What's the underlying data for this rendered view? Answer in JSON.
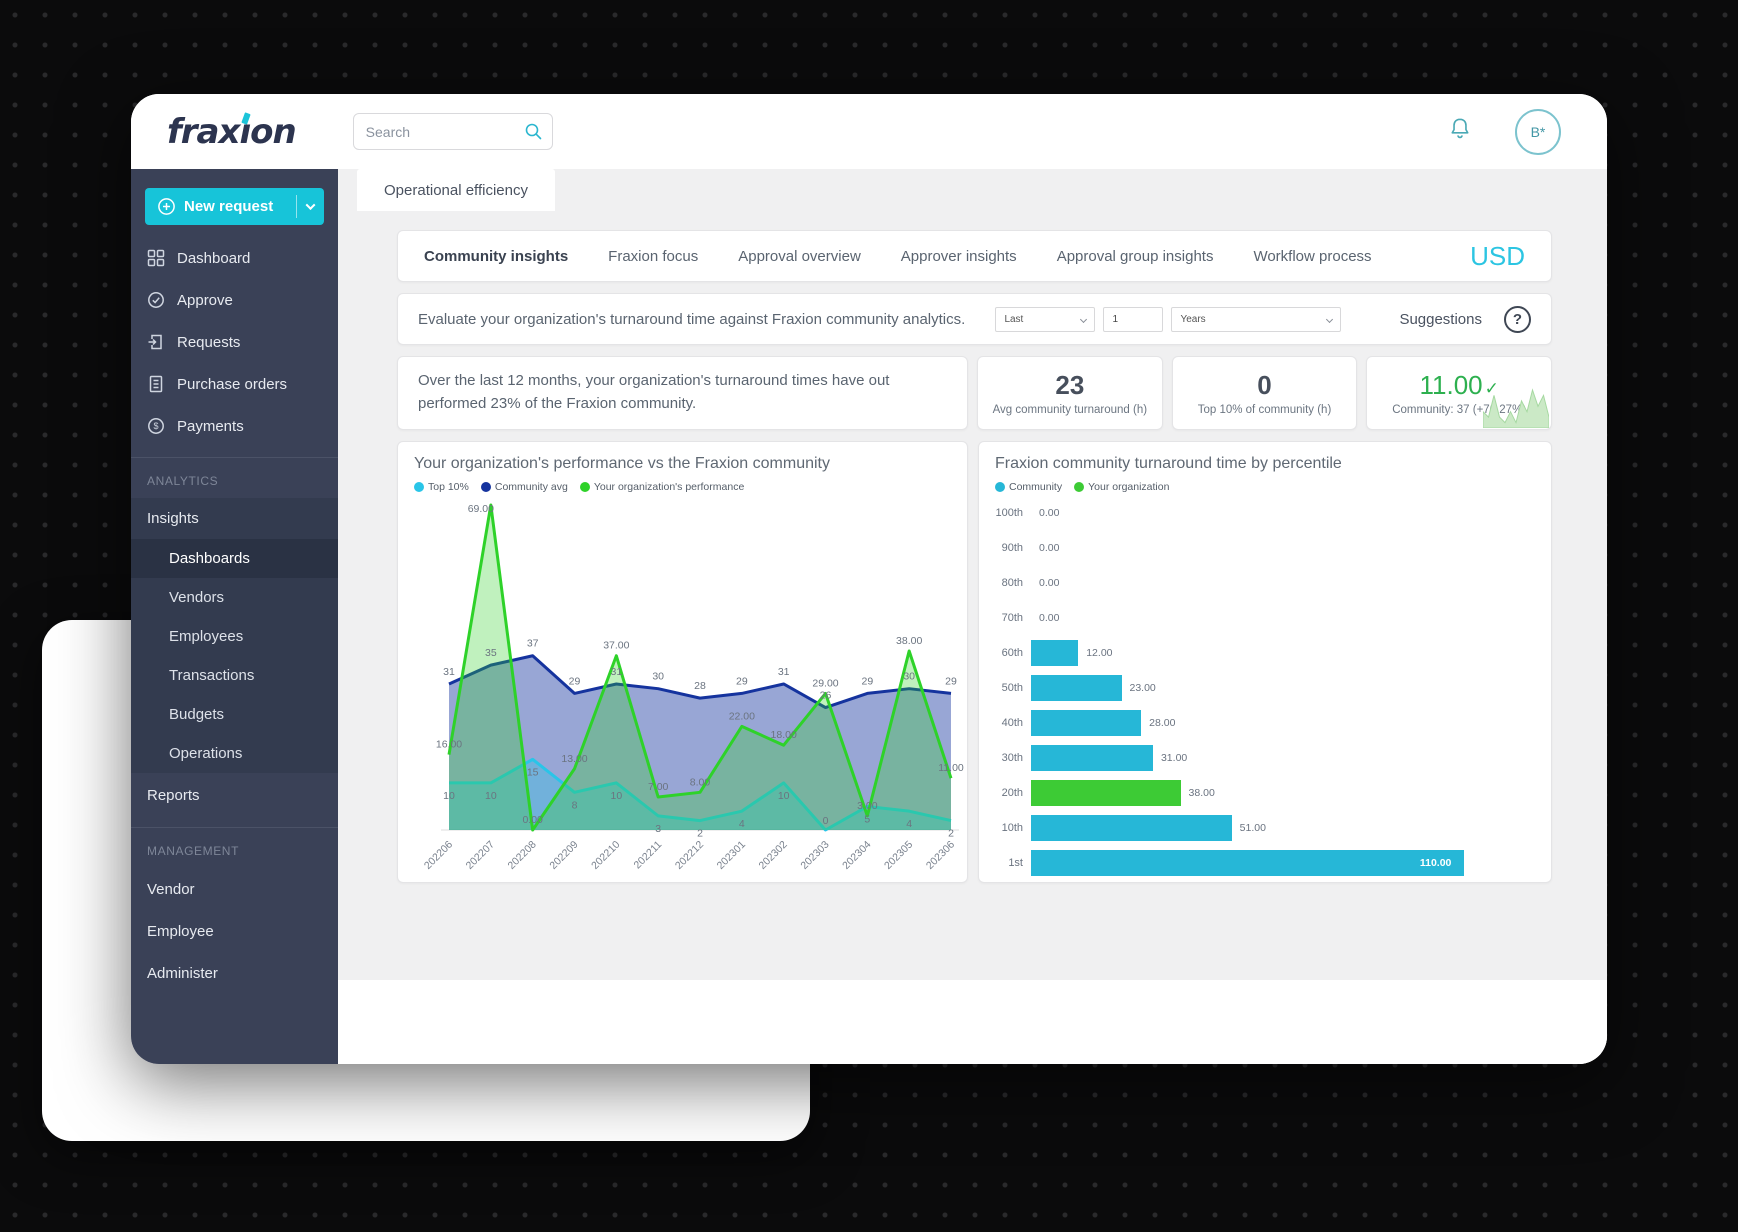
{
  "header": {
    "brand": "fraxion",
    "search": {
      "placeholder": "Search"
    },
    "avatar_label": "B*"
  },
  "sidebar": {
    "new_request_label": "New request",
    "nav_items": [
      {
        "label": "Dashboard"
      },
      {
        "label": "Approve"
      },
      {
        "label": "Requests"
      },
      {
        "label": "Purchase orders"
      },
      {
        "label": "Payments"
      }
    ],
    "analytics_header": "ANALYTICS",
    "insights_label": "Insights",
    "insights_children": [
      "Dashboards",
      "Vendors",
      "Employees",
      "Transactions",
      "Budgets",
      "Operations"
    ],
    "active_child": "Dashboards",
    "reports_label": "Reports",
    "management_header": "MANAGEMENT",
    "management_items": [
      "Vendor",
      "Employee",
      "Administer"
    ]
  },
  "workspace": {
    "page_tab": "Operational efficiency",
    "tabs": [
      "Community insights",
      "Fraxion focus",
      "Approval overview",
      "Approver insights",
      "Approval group insights",
      "Workflow process"
    ],
    "active_tab": "Community insights",
    "currency": "USD",
    "filter": {
      "description": "Evaluate your organization's turnaround time against Fraxion community analytics.",
      "range_operator": "Last",
      "range_value": "1",
      "range_unit": "Years",
      "suggestions_label": "Suggestions",
      "help_glyph": "?"
    },
    "summary_text": "Over the last 12 months, your organization's turnaround times have out performed 23% of  the Fraxion community.",
    "stat_cards": [
      {
        "value": "23",
        "label": "Avg community turnaround (h)"
      },
      {
        "value": "0",
        "label": "Top 10% of community (h)"
      },
      {
        "value": "11.00",
        "check": "✓",
        "label": "Community: 37 (+70.27%)",
        "sparkline": [
          3,
          2,
          6,
          2,
          1,
          3,
          1,
          5,
          3,
          7,
          4,
          6,
          2
        ]
      }
    ]
  },
  "colors": {
    "accent_cyan": "#1cc4d9",
    "usd_cyan": "#2cc5e2",
    "positive_green": "#2db04f",
    "sidebar_navy": "#3a4157"
  },
  "chart_data": [
    {
      "type": "area",
      "title": "Your organization's performance vs the Fraxion community",
      "legend_position": "top-left",
      "grid": false,
      "ylim": [
        0,
        69
      ],
      "categories": [
        "202206",
        "202207",
        "202208",
        "202209",
        "202210",
        "202211",
        "202212",
        "202301",
        "202302",
        "202303",
        "202304",
        "202305",
        "202306"
      ],
      "series": [
        {
          "name": "Top 10%",
          "color": "#29c5e8",
          "fill": "rgba(41,197,232,0.35)",
          "values": [
            10,
            10,
            15,
            8,
            10,
            3,
            2,
            4,
            10,
            0,
            5,
            4,
            2
          ],
          "labels": [
            "10",
            "10",
            "15",
            "8",
            "10",
            "3",
            "2",
            "4",
            "10",
            "0",
            "5",
            "4",
            "2"
          ]
        },
        {
          "name": "Community avg",
          "color": "#15339e",
          "fill": "rgba(27,58,162,0.45)",
          "values": [
            31,
            35,
            37,
            29,
            31,
            30,
            28,
            29,
            31,
            26,
            29,
            30,
            29
          ],
          "labels": [
            "31",
            "35",
            "37",
            "29",
            "31",
            "30",
            "28",
            "29",
            "31",
            "26",
            "29",
            "30",
            "29"
          ]
        },
        {
          "name": "Your organization's performance",
          "color": "#2ed229",
          "fill": "rgba(46,210,41,0.30)",
          "values": [
            16,
            69,
            0,
            13,
            37,
            7,
            8,
            22,
            18,
            29,
            3,
            38,
            11
          ],
          "labels": [
            "16.00",
            "69.00",
            "0.00",
            "13.00",
            "37.00",
            "7.00",
            "8.00",
            "22.00",
            "18.00",
            "29.00",
            "3.00",
            "38.00",
            "11.00"
          ]
        }
      ]
    },
    {
      "type": "bar",
      "orientation": "horizontal",
      "title": "Fraxion community turnaround time by percentile",
      "legend": [
        "Community",
        "Your organization"
      ],
      "legend_position": "top-left",
      "grid": false,
      "xlim": [
        0,
        123
      ],
      "categories": [
        "100th",
        "90th",
        "80th",
        "70th",
        "60th",
        "50th",
        "40th",
        "30th",
        "20th",
        "10th",
        "1st"
      ],
      "values": [
        0,
        0,
        0,
        0,
        12,
        23,
        28,
        31,
        38,
        51,
        110
      ],
      "labels": [
        "0.00",
        "0.00",
        "0.00",
        "0.00",
        "12.00",
        "23.00",
        "28.00",
        "31.00",
        "38.00",
        "51.00",
        "110.00"
      ],
      "highlight_index": 8,
      "inside_label_index": 10,
      "colors": {
        "community": "#26b7d7",
        "organization": "#3dcb35"
      }
    }
  ]
}
